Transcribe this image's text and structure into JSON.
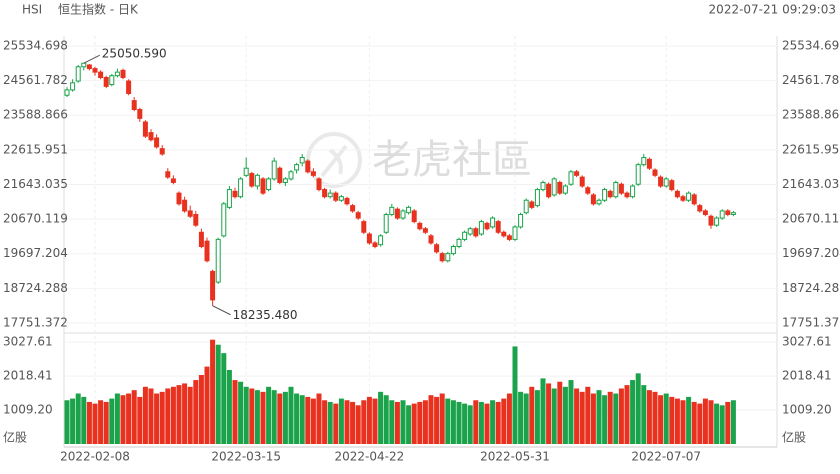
{
  "chart_data": {
    "type": "candlestick",
    "symbol": "HSI",
    "title": "恒生指数 - 日K",
    "timestamp": "2022-07-21 09:29:03",
    "watermark": "老虎社區",
    "up_color": "#1aa34a",
    "down_color": "#e8311f",
    "grid": true,
    "high_label": "25050.590",
    "low_label": "18235.480",
    "categories": [
      null,
      null,
      null,
      null,
      null,
      "2022-02-08",
      null,
      null,
      null,
      null,
      null,
      null,
      null,
      null,
      null,
      null,
      null,
      null,
      null,
      null,
      null,
      null,
      null,
      null,
      null,
      null,
      null,
      null,
      null,
      null,
      null,
      null,
      "2022-03-15",
      null,
      null,
      null,
      null,
      null,
      null,
      null,
      null,
      null,
      null,
      null,
      null,
      null,
      null,
      null,
      null,
      null,
      null,
      null,
      null,
      null,
      "2022-04-22",
      null,
      null,
      null,
      null,
      null,
      null,
      null,
      null,
      null,
      null,
      null,
      null,
      null,
      null,
      null,
      null,
      null,
      null,
      null,
      null,
      null,
      null,
      null,
      null,
      null,
      "2022-05-31",
      null,
      null,
      null,
      null,
      null,
      null,
      null,
      null,
      null,
      null,
      null,
      null,
      null,
      null,
      null,
      null,
      null,
      null,
      null,
      null,
      null,
      null,
      null,
      null,
      null,
      null,
      "2022-07-07",
      null,
      null,
      null,
      null,
      null,
      null,
      null,
      null,
      null,
      null,
      null,
      null
    ],
    "candles": [
      [
        24150,
        24380,
        24100,
        24300
      ],
      [
        24300,
        24600,
        24250,
        24500
      ],
      [
        24550,
        25000,
        24500,
        24950
      ],
      [
        24950,
        25050.59,
        24850,
        25050
      ],
      [
        25000,
        25030,
        24850,
        24900
      ],
      [
        24900,
        24950,
        24700,
        24800
      ],
      [
        24800,
        24850,
        24600,
        24650
      ],
      [
        24650,
        24700,
        24350,
        24400
      ],
      [
        24450,
        24750,
        24400,
        24700
      ],
      [
        24700,
        24900,
        24650,
        24800
      ],
      [
        24850,
        24900,
        24600,
        24650
      ],
      [
        24550,
        24600,
        24150,
        24200
      ],
      [
        24000,
        24100,
        23700,
        23750
      ],
      [
        23750,
        23800,
        23400,
        23500
      ],
      [
        23400,
        23450,
        22950,
        23000
      ],
      [
        23100,
        23200,
        22850,
        22900
      ],
      [
        22950,
        23050,
        22650,
        22700
      ],
      [
        22650,
        22750,
        22450,
        22500
      ],
      [
        22000,
        22100,
        21800,
        21850
      ],
      [
        21800,
        21900,
        21650,
        21700
      ],
      [
        21400,
        21450,
        21050,
        21100
      ],
      [
        21200,
        21300,
        20850,
        20900
      ],
      [
        20900,
        21050,
        20700,
        20750
      ],
      [
        20800,
        20900,
        20450,
        20500
      ],
      [
        20300,
        20400,
        19850,
        19900
      ],
      [
        20050,
        20150,
        19450,
        19500
      ],
      [
        19200,
        19250,
        18235.48,
        18400
      ],
      [
        18900,
        20150,
        18850,
        20100
      ],
      [
        20200,
        21150,
        20150,
        21100
      ],
      [
        21000,
        21600,
        20950,
        21500
      ],
      [
        21450,
        21550,
        21250,
        21300
      ],
      [
        21300,
        21850,
        21250,
        21800
      ],
      [
        21900,
        22400,
        21850,
        22100
      ],
      [
        21950,
        22000,
        21550,
        21600
      ],
      [
        21600,
        21950,
        21500,
        21900
      ],
      [
        21800,
        21850,
        21350,
        21400
      ],
      [
        21500,
        21850,
        21450,
        21800
      ],
      [
        21800,
        22400,
        21750,
        22300
      ],
      [
        22100,
        22150,
        21650,
        21700
      ],
      [
        21700,
        21850,
        21600,
        21800
      ],
      [
        21800,
        22050,
        21750,
        22000
      ],
      [
        22050,
        22250,
        21950,
        22200
      ],
      [
        22250,
        22500,
        22150,
        22400
      ],
      [
        22300,
        22350,
        21950,
        22000
      ],
      [
        22000,
        22100,
        21850,
        21900
      ],
      [
        21800,
        21850,
        21450,
        21500
      ],
      [
        21500,
        21550,
        21250,
        21300
      ],
      [
        21300,
        21500,
        21250,
        21400
      ],
      [
        21400,
        21450,
        21150,
        21200
      ],
      [
        21200,
        21350,
        21150,
        21300
      ],
      [
        21250,
        21300,
        21050,
        21100
      ],
      [
        21050,
        21100,
        20850,
        20900
      ],
      [
        20850,
        20900,
        20650,
        20700
      ],
      [
        20600,
        20650,
        20250,
        20300
      ],
      [
        20250,
        20300,
        19950,
        20000
      ],
      [
        20000,
        20050,
        19850,
        19900
      ],
      [
        19950,
        20250,
        19900,
        20200
      ],
      [
        20300,
        20850,
        20250,
        20800
      ],
      [
        20800,
        21100,
        20750,
        21000
      ],
      [
        20950,
        21000,
        20650,
        20700
      ],
      [
        20700,
        20950,
        20650,
        20900
      ],
      [
        20850,
        21050,
        20800,
        21000
      ],
      [
        20900,
        20950,
        20550,
        20600
      ],
      [
        20550,
        20600,
        20350,
        20400
      ],
      [
        20400,
        20450,
        20250,
        20300
      ],
      [
        20200,
        20250,
        19950,
        20000
      ],
      [
        19950,
        20000,
        19700,
        19750
      ],
      [
        19700,
        19750,
        19450,
        19500
      ],
      [
        19500,
        19750,
        19450,
        19700
      ],
      [
        19700,
        19950,
        19650,
        19900
      ],
      [
        19900,
        20150,
        19850,
        20100
      ],
      [
        20100,
        20350,
        20050,
        20300
      ],
      [
        20250,
        20450,
        20200,
        20400
      ],
      [
        20400,
        20450,
        20150,
        20200
      ],
      [
        20250,
        20650,
        20200,
        20600
      ],
      [
        20550,
        20600,
        20350,
        20400
      ],
      [
        20450,
        20750,
        20400,
        20700
      ],
      [
        20600,
        20650,
        20250,
        20300
      ],
      [
        20300,
        20350,
        20150,
        20200
      ],
      [
        20200,
        20250,
        20050,
        20100
      ],
      [
        20100,
        20500,
        20050,
        20450
      ],
      [
        20450,
        20850,
        20400,
        20800
      ],
      [
        20850,
        21250,
        20800,
        21200
      ],
      [
        21150,
        21200,
        20950,
        21000
      ],
      [
        21050,
        21550,
        21000,
        21500
      ],
      [
        21500,
        21750,
        21450,
        21700
      ],
      [
        21650,
        21700,
        21250,
        21300
      ],
      [
        21350,
        21850,
        21300,
        21800
      ],
      [
        21700,
        21750,
        21350,
        21400
      ],
      [
        21400,
        21650,
        21350,
        21600
      ],
      [
        21650,
        22050,
        21600,
        22000
      ],
      [
        22000,
        22050,
        21850,
        21900
      ],
      [
        21850,
        21900,
        21550,
        21600
      ],
      [
        21550,
        21600,
        21350,
        21400
      ],
      [
        21350,
        21400,
        21050,
        21100
      ],
      [
        21100,
        21250,
        21050,
        21200
      ],
      [
        21200,
        21550,
        21150,
        21500
      ],
      [
        21450,
        21500,
        21250,
        21300
      ],
      [
        21300,
        21750,
        21250,
        21700
      ],
      [
        21650,
        21700,
        21350,
        21400
      ],
      [
        21400,
        21450,
        21250,
        21300
      ],
      [
        21300,
        21650,
        21250,
        21600
      ],
      [
        21650,
        22250,
        21600,
        22200
      ],
      [
        22200,
        22500,
        22150,
        22400
      ],
      [
        22350,
        22400,
        22050,
        22100
      ],
      [
        22050,
        22100,
        21850,
        21900
      ],
      [
        21850,
        21900,
        21550,
        21600
      ],
      [
        21600,
        21850,
        21550,
        21800
      ],
      [
        21750,
        21800,
        21450,
        21500
      ],
      [
        21450,
        21500,
        21250,
        21300
      ],
      [
        21300,
        21350,
        21150,
        21200
      ],
      [
        21200,
        21450,
        21150,
        21400
      ],
      [
        21350,
        21400,
        21050,
        21100
      ],
      [
        21050,
        21100,
        20850,
        20900
      ],
      [
        20900,
        20950,
        20750,
        20800
      ],
      [
        20750,
        20800,
        20400,
        20500
      ],
      [
        20500,
        20750,
        20450,
        20700
      ],
      [
        20700,
        20950,
        20650,
        20900
      ],
      [
        20900,
        20950,
        20750,
        20800
      ],
      [
        20800,
        20900,
        20750,
        20850
      ]
    ],
    "ylim": [
      17554,
      25759
    ],
    "yticks": [
      25534.698,
      24561.782,
      23588.866,
      22615.951,
      21643.035,
      20670.119,
      19697.204,
      18724.288,
      17751.372
    ],
    "volume": {
      "unit": "亿股",
      "ylim": [
        0,
        3150
      ],
      "yticks": [
        3027.61,
        2018.41,
        {
          "value": 1009.2,
          "label": "1009.20"
        }
      ],
      "values": [
        1300,
        1350,
        1500,
        1400,
        1250,
        1200,
        1300,
        1250,
        1350,
        1500,
        1450,
        1500,
        1600,
        1400,
        1700,
        1650,
        1500,
        1550,
        1650,
        1700,
        1750,
        1800,
        1700,
        1900,
        2050,
        2300,
        3100,
        2950,
        2700,
        2200,
        1900,
        1850,
        1700,
        1650,
        1600,
        1550,
        1700,
        1600,
        1500,
        1550,
        1700,
        1500,
        1450,
        1400,
        1350,
        1500,
        1300,
        1250,
        1200,
        1350,
        1300,
        1250,
        1150,
        1300,
        1400,
        1350,
        1550,
        1450,
        1300,
        1250,
        1300,
        1150,
        1200,
        1250,
        1300,
        1450,
        1400,
        1500,
        1350,
        1300,
        1250,
        1200,
        1150,
        1300,
        1250,
        1200,
        1300,
        1250,
        1350,
        1500,
        2900,
        1550,
        1500,
        1700,
        1600,
        1950,
        1800,
        1650,
        1850,
        1700,
        1900,
        1650,
        1550,
        1700,
        1500,
        1600,
        1450,
        1550,
        1500,
        1650,
        1750,
        1900,
        2100,
        1750,
        1600,
        1550,
        1450,
        1500,
        1400,
        1350,
        1300,
        1400,
        1250,
        1200,
        1350,
        1300,
        1200,
        1150,
        1250,
        1300
      ]
    }
  }
}
